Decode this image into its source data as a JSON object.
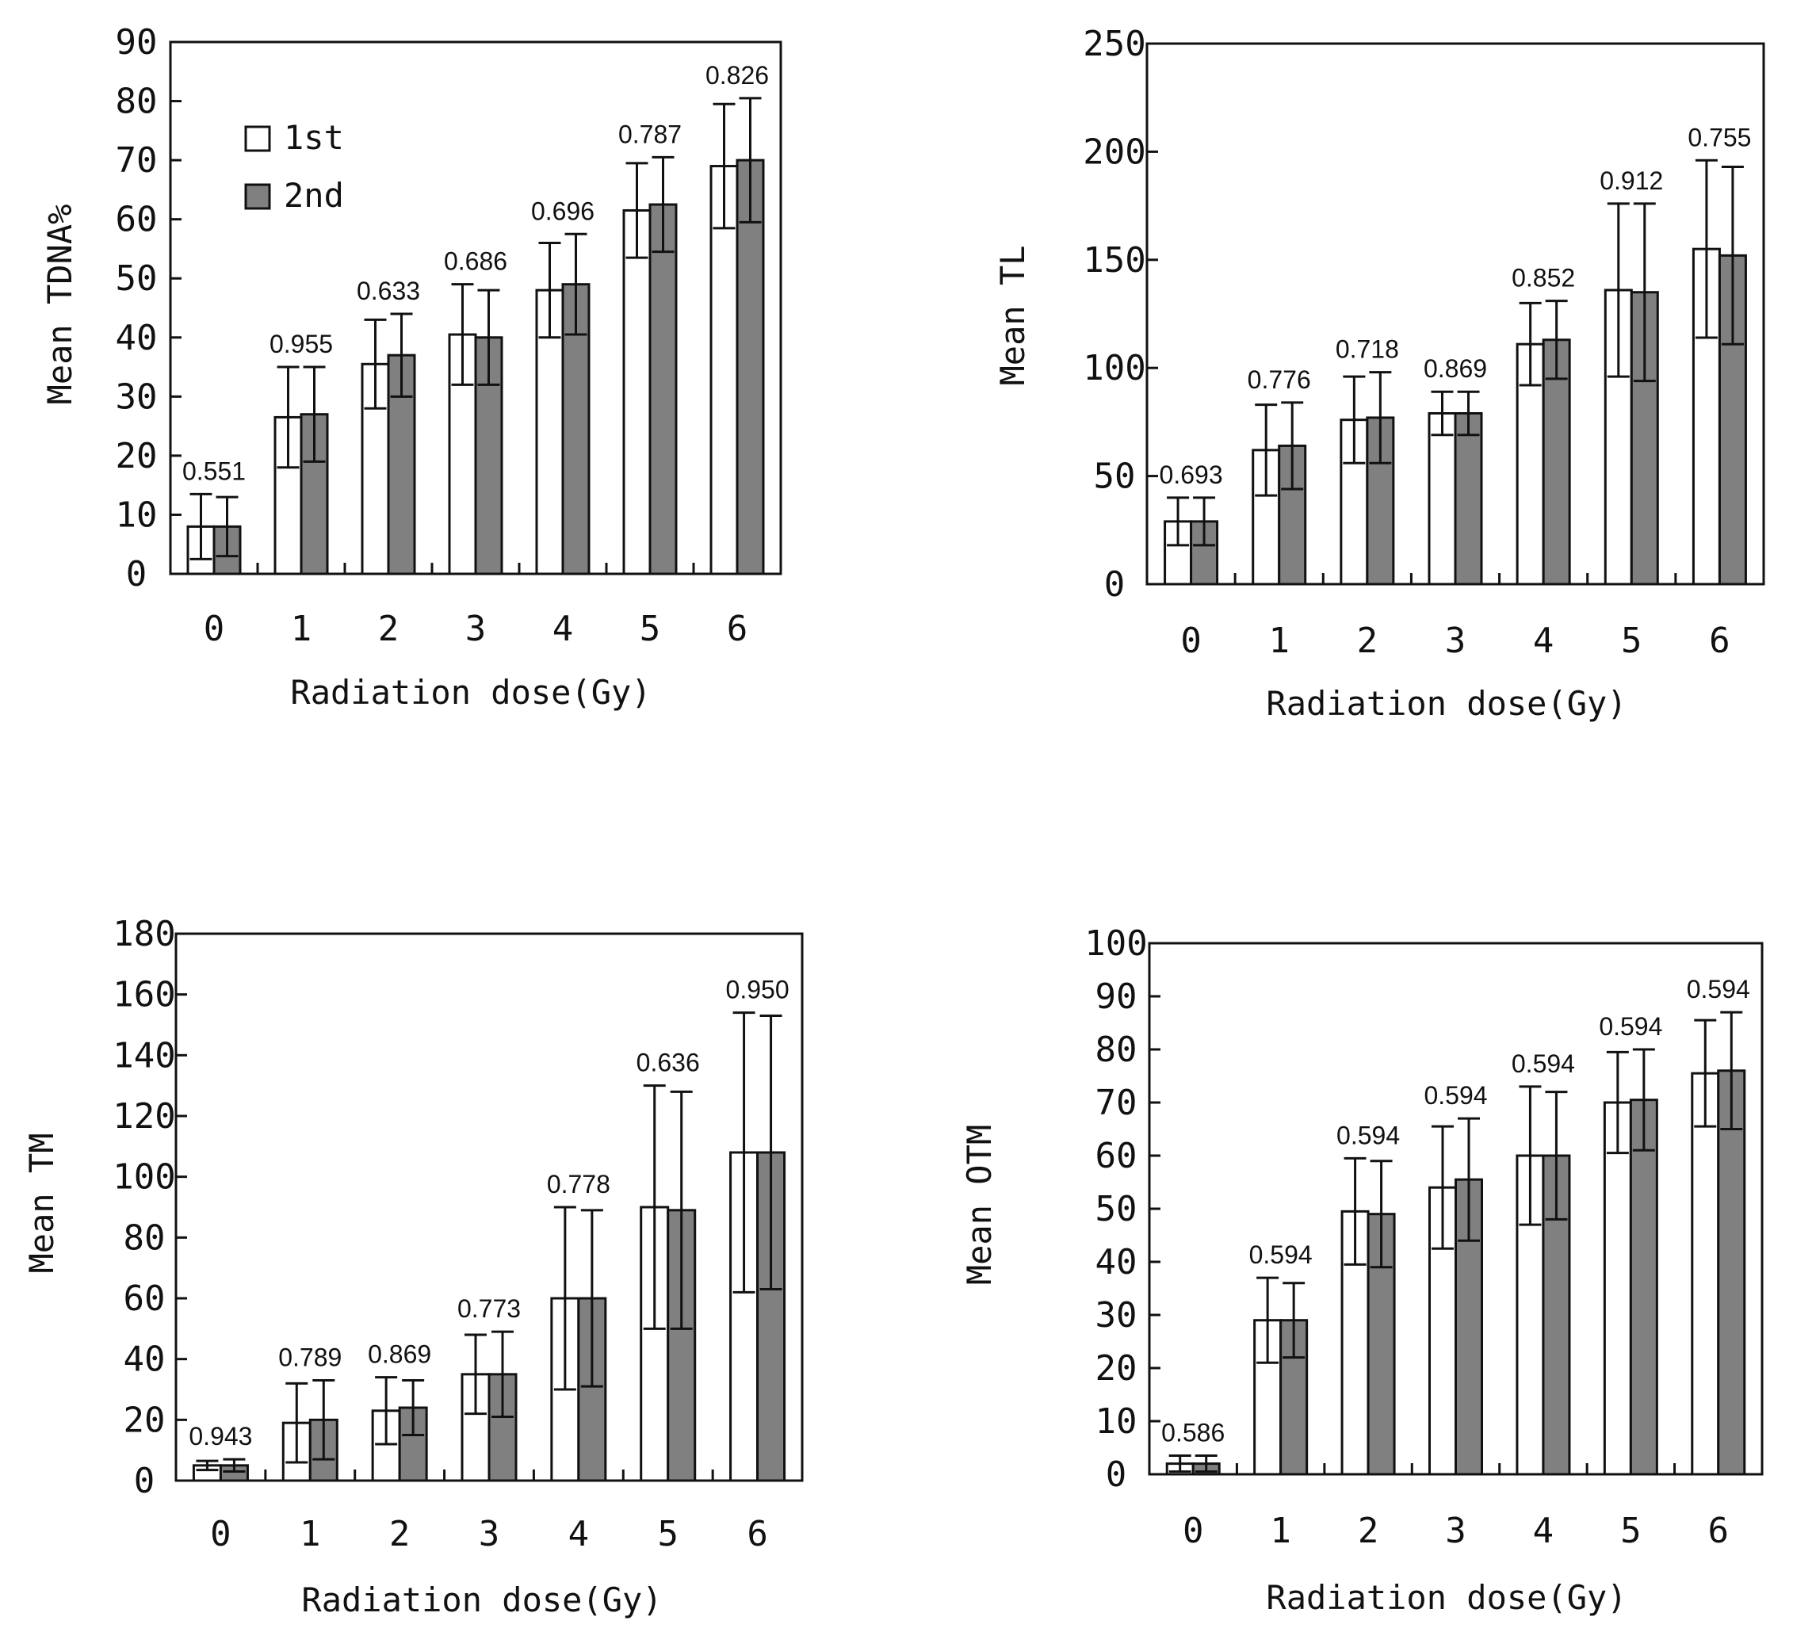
{
  "colors": {
    "series1": "#ffffff",
    "series2": "#808080",
    "stroke": "#111111"
  },
  "legend": {
    "position": "top-left",
    "items": [
      "1st",
      "2nd"
    ]
  },
  "chart_data": [
    {
      "type": "bar",
      "title": "",
      "xlabel": "Radiation dose(Gy)",
      "ylabel": "Mean TDNA%",
      "ylim": [
        0,
        90
      ],
      "yticks": [
        "0",
        "10",
        "20",
        "30",
        "40",
        "50",
        "60",
        "70",
        "80",
        "90"
      ],
      "categories": [
        "0",
        "1",
        "2",
        "3",
        "4",
        "5",
        "6"
      ],
      "series": [
        {
          "name": "1st",
          "values": [
            8,
            26.5,
            35.5,
            40.5,
            48,
            61.5,
            69
          ],
          "errors": [
            5.5,
            8.5,
            7.5,
            8.5,
            8,
            8,
            10.5
          ]
        },
        {
          "name": "2nd",
          "values": [
            8,
            27,
            37,
            40,
            49,
            62.5,
            70
          ],
          "errors": [
            5,
            8,
            7,
            8,
            8.5,
            8,
            10.5
          ]
        }
      ],
      "annotations": [
        "0.551",
        "0.955",
        "0.633",
        "0.686",
        "0.696",
        "0.787",
        "0.826"
      ],
      "legend": true
    },
    {
      "type": "bar",
      "title": "",
      "xlabel": "Radiation dose(Gy)",
      "ylabel": "Mean TL",
      "ylim": [
        0,
        250
      ],
      "yticks": [
        "0",
        "50",
        "100",
        "150",
        "200",
        "250"
      ],
      "categories": [
        "0",
        "1",
        "2",
        "3",
        "4",
        "5",
        "6"
      ],
      "series": [
        {
          "name": "1st",
          "values": [
            29,
            62,
            76,
            79,
            111,
            136,
            155
          ],
          "errors": [
            11,
            21,
            20,
            10,
            19,
            40,
            41
          ]
        },
        {
          "name": "2nd",
          "values": [
            29,
            64,
            77,
            79,
            113,
            135,
            152
          ],
          "errors": [
            11,
            20,
            21,
            10,
            18,
            41,
            41
          ]
        }
      ],
      "annotations": [
        "0.693",
        "0.776",
        "0.718",
        "0.869",
        "0.852",
        "0.912",
        "0.755"
      ],
      "legend": false
    },
    {
      "type": "bar",
      "title": "",
      "xlabel": "Radiation dose(Gy)",
      "ylabel": "Mean TM",
      "ylim": [
        0,
        180
      ],
      "yticks": [
        "0",
        "20",
        "40",
        "60",
        "80",
        "100",
        "120",
        "140",
        "160",
        "180"
      ],
      "categories": [
        "0",
        "1",
        "2",
        "3",
        "4",
        "5",
        "6"
      ],
      "series": [
        {
          "name": "1st",
          "values": [
            5,
            19,
            23,
            35,
            60,
            90,
            108
          ],
          "errors": [
            1.5,
            13,
            11,
            13,
            30,
            40,
            46
          ]
        },
        {
          "name": "2nd",
          "values": [
            5,
            20,
            24,
            35,
            60,
            89,
            108
          ],
          "errors": [
            2,
            13,
            9,
            14,
            29,
            39,
            45
          ]
        }
      ],
      "annotations": [
        "0.943",
        "0.789",
        "0.869",
        "0.773",
        "0.778",
        "0.636",
        "0.950"
      ],
      "legend": false
    },
    {
      "type": "bar",
      "title": "",
      "xlabel": "Radiation dose(Gy)",
      "ylabel": "Mean OTM",
      "ylim": [
        0,
        100
      ],
      "yticks": [
        "0",
        "10",
        "20",
        "30",
        "40",
        "50",
        "60",
        "70",
        "80",
        "90",
        "100"
      ],
      "categories": [
        "0",
        "1",
        "2",
        "3",
        "4",
        "5",
        "6"
      ],
      "series": [
        {
          "name": "1st",
          "values": [
            2,
            29,
            49.5,
            54,
            60,
            70,
            75.5
          ],
          "errors": [
            1.5,
            8,
            10,
            11.5,
            13,
            9.5,
            10
          ]
        },
        {
          "name": "2nd",
          "values": [
            2,
            29,
            49,
            55.5,
            60,
            70.5,
            76
          ],
          "errors": [
            1.5,
            7,
            10,
            11.5,
            12,
            9.5,
            11
          ]
        }
      ],
      "annotations": [
        "0.586",
        "0.594",
        "0.594",
        "0.594",
        "0.594",
        "0.594",
        "0.594"
      ],
      "legend": false
    }
  ]
}
